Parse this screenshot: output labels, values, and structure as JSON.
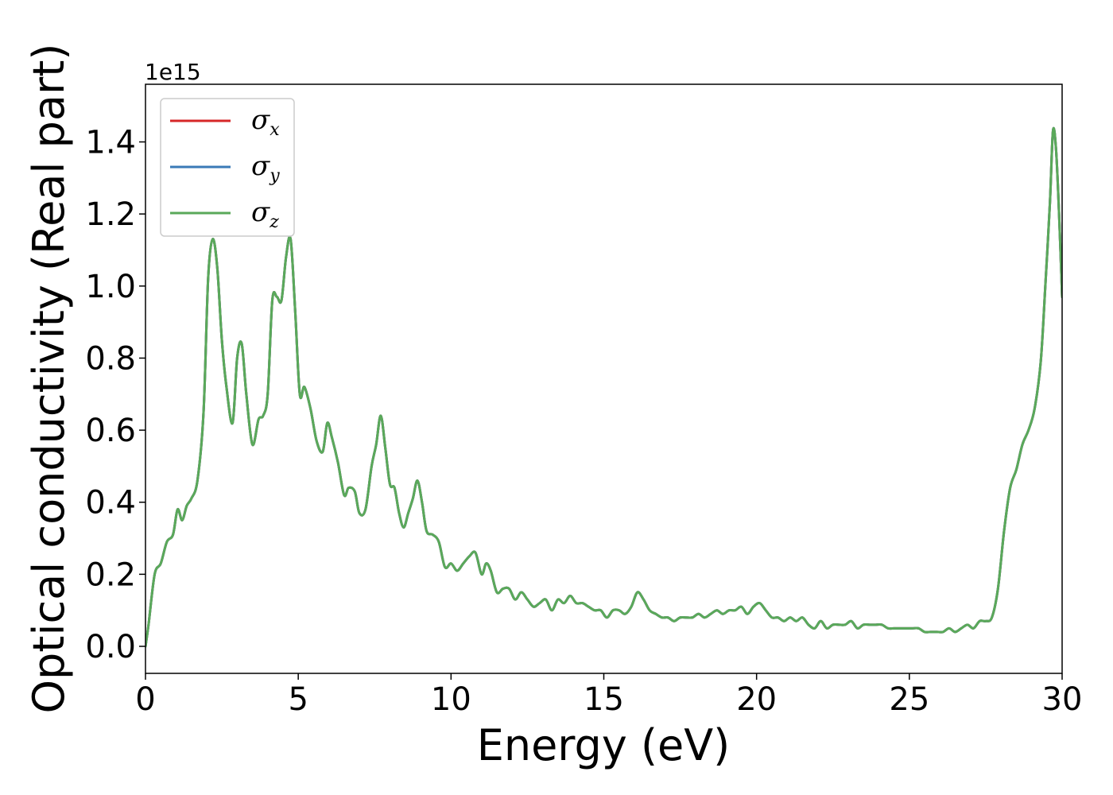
{
  "chart_data": {
    "type": "line",
    "title": "",
    "xlabel": "Energy (eV)",
    "ylabel": "Optical conductivity (Real part)",
    "y_offset_label": "1e15",
    "xlim": [
      0,
      30
    ],
    "ylim": [
      -0.075,
      1.56
    ],
    "y_scale": "×1e15",
    "grid": false,
    "legend_placement": "top-left",
    "x_ticks": [
      "0",
      "5",
      "10",
      "15",
      "20",
      "25",
      "30"
    ],
    "y_ticks": [
      "0.0",
      "0.2",
      "0.4",
      "0.6",
      "0.8",
      "1.0",
      "1.2",
      "1.4"
    ],
    "x": [
      0,
      0.1,
      0.3,
      0.5,
      0.7,
      0.9,
      1.05,
      1.2,
      1.35,
      1.5,
      1.7,
      1.9,
      2.05,
      2.2,
      2.35,
      2.5,
      2.65,
      2.85,
      3.0,
      3.15,
      3.3,
      3.5,
      3.7,
      3.85,
      4.0,
      4.15,
      4.3,
      4.45,
      4.6,
      4.75,
      4.9,
      5.05,
      5.2,
      5.4,
      5.6,
      5.8,
      5.95,
      6.1,
      6.3,
      6.5,
      6.65,
      6.85,
      7.0,
      7.2,
      7.4,
      7.55,
      7.7,
      7.85,
      8.0,
      8.15,
      8.3,
      8.45,
      8.6,
      8.75,
      8.9,
      9.05,
      9.2,
      9.4,
      9.6,
      9.8,
      10.0,
      10.2,
      10.4,
      10.6,
      10.8,
      11.0,
      11.15,
      11.3,
      11.5,
      11.7,
      11.9,
      12.1,
      12.3,
      12.5,
      12.7,
      12.9,
      13.1,
      13.3,
      13.5,
      13.7,
      13.9,
      14.1,
      14.3,
      14.5,
      14.7,
      14.9,
      15.1,
      15.3,
      15.5,
      15.7,
      15.9,
      16.1,
      16.3,
      16.5,
      16.7,
      16.9,
      17.1,
      17.3,
      17.5,
      17.7,
      17.9,
      18.1,
      18.3,
      18.5,
      18.7,
      18.9,
      19.1,
      19.3,
      19.5,
      19.7,
      19.9,
      20.1,
      20.3,
      20.5,
      20.7,
      20.9,
      21.1,
      21.3,
      21.5,
      21.7,
      21.9,
      22.1,
      22.3,
      22.5,
      22.7,
      22.9,
      23.1,
      23.3,
      23.5,
      23.7,
      23.9,
      24.1,
      24.3,
      24.5,
      24.7,
      24.9,
      25.1,
      25.3,
      25.5,
      25.7,
      25.9,
      26.1,
      26.3,
      26.5,
      26.7,
      26.9,
      27.1,
      27.3,
      27.5,
      27.7,
      27.9,
      28.1,
      28.3,
      28.5,
      28.7,
      28.9,
      29.1,
      29.3,
      29.45,
      29.6,
      29.7,
      29.8,
      29.9,
      30.0
    ],
    "series": [
      {
        "name": "σx",
        "symbol": "σ",
        "subscript": "x",
        "color": "#d62728",
        "values": [
          0.0,
          0.06,
          0.2,
          0.23,
          0.29,
          0.31,
          0.38,
          0.35,
          0.39,
          0.41,
          0.46,
          0.65,
          1.02,
          1.13,
          1.05,
          0.85,
          0.72,
          0.62,
          0.8,
          0.84,
          0.7,
          0.56,
          0.63,
          0.64,
          0.7,
          0.96,
          0.97,
          0.96,
          1.08,
          1.13,
          0.93,
          0.7,
          0.72,
          0.66,
          0.57,
          0.54,
          0.62,
          0.58,
          0.51,
          0.42,
          0.44,
          0.43,
          0.37,
          0.38,
          0.5,
          0.56,
          0.64,
          0.55,
          0.45,
          0.44,
          0.37,
          0.33,
          0.37,
          0.41,
          0.46,
          0.4,
          0.32,
          0.31,
          0.29,
          0.22,
          0.23,
          0.21,
          0.23,
          0.25,
          0.26,
          0.2,
          0.23,
          0.21,
          0.15,
          0.16,
          0.16,
          0.13,
          0.15,
          0.13,
          0.11,
          0.12,
          0.13,
          0.1,
          0.13,
          0.12,
          0.14,
          0.12,
          0.12,
          0.11,
          0.1,
          0.1,
          0.08,
          0.1,
          0.1,
          0.09,
          0.11,
          0.15,
          0.13,
          0.1,
          0.09,
          0.08,
          0.08,
          0.07,
          0.08,
          0.08,
          0.08,
          0.09,
          0.08,
          0.09,
          0.1,
          0.09,
          0.1,
          0.1,
          0.11,
          0.09,
          0.11,
          0.12,
          0.1,
          0.08,
          0.08,
          0.07,
          0.08,
          0.07,
          0.08,
          0.06,
          0.05,
          0.07,
          0.05,
          0.06,
          0.06,
          0.06,
          0.07,
          0.05,
          0.06,
          0.06,
          0.06,
          0.06,
          0.05,
          0.05,
          0.05,
          0.05,
          0.05,
          0.05,
          0.04,
          0.04,
          0.04,
          0.04,
          0.05,
          0.04,
          0.05,
          0.06,
          0.05,
          0.07,
          0.07,
          0.08,
          0.16,
          0.32,
          0.44,
          0.49,
          0.56,
          0.6,
          0.66,
          0.79,
          1.0,
          1.23,
          1.43,
          1.38,
          1.2,
          0.97
        ]
      },
      {
        "name": "σy",
        "symbol": "σ",
        "subscript": "y",
        "color": "#3a7ab7",
        "values": [
          0.0,
          0.06,
          0.2,
          0.23,
          0.29,
          0.31,
          0.38,
          0.35,
          0.39,
          0.41,
          0.46,
          0.65,
          1.02,
          1.13,
          1.05,
          0.85,
          0.72,
          0.62,
          0.8,
          0.84,
          0.7,
          0.56,
          0.63,
          0.64,
          0.7,
          0.96,
          0.97,
          0.96,
          1.08,
          1.13,
          0.93,
          0.7,
          0.72,
          0.66,
          0.57,
          0.54,
          0.62,
          0.58,
          0.51,
          0.42,
          0.44,
          0.43,
          0.37,
          0.38,
          0.5,
          0.56,
          0.64,
          0.55,
          0.45,
          0.44,
          0.37,
          0.33,
          0.37,
          0.41,
          0.46,
          0.4,
          0.32,
          0.31,
          0.29,
          0.22,
          0.23,
          0.21,
          0.23,
          0.25,
          0.26,
          0.2,
          0.23,
          0.21,
          0.15,
          0.16,
          0.16,
          0.13,
          0.15,
          0.13,
          0.11,
          0.12,
          0.13,
          0.1,
          0.13,
          0.12,
          0.14,
          0.12,
          0.12,
          0.11,
          0.1,
          0.1,
          0.08,
          0.1,
          0.1,
          0.09,
          0.11,
          0.15,
          0.13,
          0.1,
          0.09,
          0.08,
          0.08,
          0.07,
          0.08,
          0.08,
          0.08,
          0.09,
          0.08,
          0.09,
          0.1,
          0.09,
          0.1,
          0.1,
          0.11,
          0.09,
          0.11,
          0.12,
          0.1,
          0.08,
          0.08,
          0.07,
          0.08,
          0.07,
          0.08,
          0.06,
          0.05,
          0.07,
          0.05,
          0.06,
          0.06,
          0.06,
          0.07,
          0.05,
          0.06,
          0.06,
          0.06,
          0.06,
          0.05,
          0.05,
          0.05,
          0.05,
          0.05,
          0.05,
          0.04,
          0.04,
          0.04,
          0.04,
          0.05,
          0.04,
          0.05,
          0.06,
          0.05,
          0.07,
          0.07,
          0.08,
          0.16,
          0.32,
          0.44,
          0.49,
          0.56,
          0.6,
          0.66,
          0.79,
          1.0,
          1.23,
          1.43,
          1.38,
          1.2,
          0.97
        ]
      },
      {
        "name": "σz",
        "symbol": "σ",
        "subscript": "z",
        "color": "#5aa95a",
        "values": [
          0.0,
          0.06,
          0.2,
          0.23,
          0.29,
          0.31,
          0.38,
          0.35,
          0.39,
          0.41,
          0.46,
          0.65,
          1.02,
          1.13,
          1.05,
          0.85,
          0.72,
          0.62,
          0.8,
          0.84,
          0.7,
          0.56,
          0.63,
          0.64,
          0.7,
          0.96,
          0.97,
          0.96,
          1.08,
          1.13,
          0.93,
          0.7,
          0.72,
          0.66,
          0.57,
          0.54,
          0.62,
          0.58,
          0.51,
          0.42,
          0.44,
          0.43,
          0.37,
          0.38,
          0.5,
          0.56,
          0.64,
          0.55,
          0.45,
          0.44,
          0.37,
          0.33,
          0.37,
          0.41,
          0.46,
          0.4,
          0.32,
          0.31,
          0.29,
          0.22,
          0.23,
          0.21,
          0.23,
          0.25,
          0.26,
          0.2,
          0.23,
          0.21,
          0.15,
          0.16,
          0.16,
          0.13,
          0.15,
          0.13,
          0.11,
          0.12,
          0.13,
          0.1,
          0.13,
          0.12,
          0.14,
          0.12,
          0.12,
          0.11,
          0.1,
          0.1,
          0.08,
          0.1,
          0.1,
          0.09,
          0.11,
          0.15,
          0.13,
          0.1,
          0.09,
          0.08,
          0.08,
          0.07,
          0.08,
          0.08,
          0.08,
          0.09,
          0.08,
          0.09,
          0.1,
          0.09,
          0.1,
          0.1,
          0.11,
          0.09,
          0.11,
          0.12,
          0.1,
          0.08,
          0.08,
          0.07,
          0.08,
          0.07,
          0.08,
          0.06,
          0.05,
          0.07,
          0.05,
          0.06,
          0.06,
          0.06,
          0.07,
          0.05,
          0.06,
          0.06,
          0.06,
          0.06,
          0.05,
          0.05,
          0.05,
          0.05,
          0.05,
          0.05,
          0.04,
          0.04,
          0.04,
          0.04,
          0.05,
          0.04,
          0.05,
          0.06,
          0.05,
          0.07,
          0.07,
          0.08,
          0.16,
          0.32,
          0.44,
          0.49,
          0.56,
          0.6,
          0.66,
          0.79,
          1.0,
          1.23,
          1.43,
          1.38,
          1.2,
          0.97
        ]
      }
    ]
  }
}
